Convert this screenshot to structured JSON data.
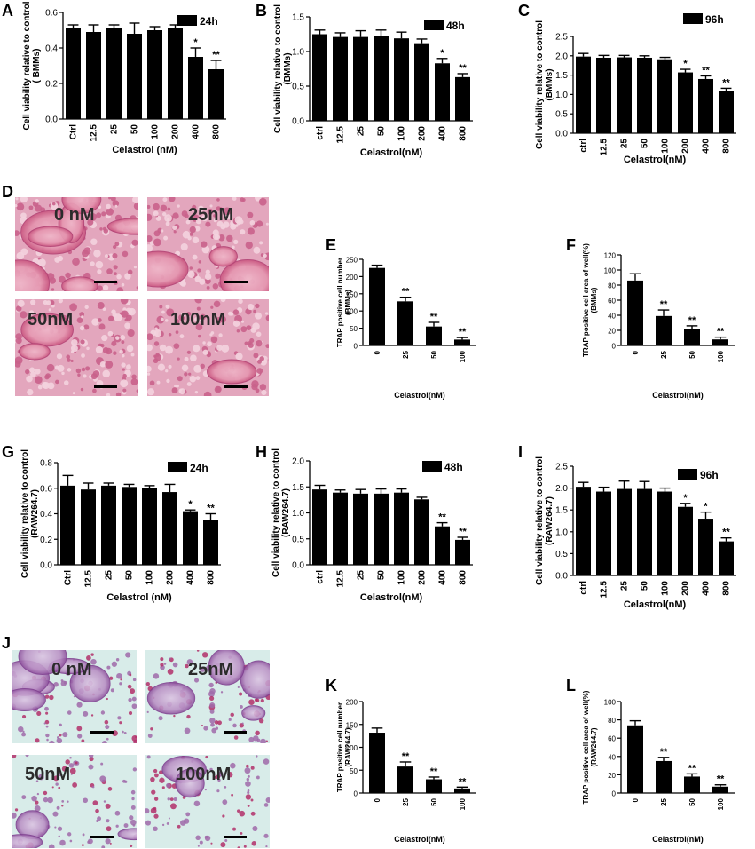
{
  "figure": {
    "colors": {
      "bar": "#000000",
      "axis": "#000000",
      "stain_pink": "#e3a6bd",
      "stain_dark": "#c05587",
      "raw_bg": "#d8ece9",
      "raw_purple": "#b07ab8",
      "raw_magenta": "#b3306a"
    },
    "panels": [
      {
        "letter": "A"
      },
      {
        "letter": "B"
      },
      {
        "letter": "C"
      },
      {
        "letter": "D"
      },
      {
        "letter": "E"
      },
      {
        "letter": "F"
      },
      {
        "letter": "G"
      },
      {
        "letter": "H"
      },
      {
        "letter": "I"
      },
      {
        "letter": "J"
      },
      {
        "letter": "K"
      },
      {
        "letter": "L"
      }
    ],
    "micro_bmm": {
      "labels": [
        "0 nM",
        "25nM",
        "50nM",
        "100nM"
      ]
    },
    "micro_raw": {
      "labels": [
        "0 nM",
        "25nM",
        "50nM",
        "100nM"
      ]
    }
  },
  "chart_data": [
    {
      "panel": "A",
      "type": "bar",
      "categories": [
        "Ctrl",
        "12.5",
        "25",
        "50",
        "100",
        "200",
        "400",
        "800"
      ],
      "values": [
        0.51,
        0.49,
        0.51,
        0.48,
        0.5,
        0.51,
        0.35,
        0.28
      ],
      "errors": [
        0.02,
        0.04,
        0.02,
        0.06,
        0.02,
        0.02,
        0.05,
        0.05
      ],
      "sig": [
        "",
        "",
        "",
        "",
        "",
        "",
        "*",
        "**"
      ],
      "ylim": [
        0,
        0.6
      ],
      "yticks": [
        "0.0",
        "0.2",
        "0.4",
        "0.6"
      ],
      "ylabel": [
        "Cell viability relative to control",
        "( BMMs)"
      ],
      "xlabel": "Celastrol (nM)",
      "legend": "24h"
    },
    {
      "panel": "B",
      "type": "bar",
      "categories": [
        "ctrl",
        "12.5",
        "25",
        "50",
        "100",
        "200",
        "400",
        "800"
      ],
      "values": [
        1.25,
        1.21,
        1.21,
        1.23,
        1.19,
        1.12,
        0.83,
        0.63
      ],
      "errors": [
        0.06,
        0.06,
        0.09,
        0.08,
        0.09,
        0.06,
        0.07,
        0.05
      ],
      "sig": [
        "",
        "",
        "",
        "",
        "",
        "",
        "*",
        "**"
      ],
      "ylim": [
        0,
        1.5
      ],
      "yticks": [
        "0.0",
        "0.5",
        "1.0",
        "1.5"
      ],
      "ylabel": [
        "Cell viability relative to control",
        "(BMMs)"
      ],
      "xlabel": "Celastrol(nM)",
      "legend": "48h"
    },
    {
      "panel": "C",
      "type": "bar",
      "categories": [
        "ctrl",
        "12.5",
        "25",
        "50",
        "100",
        "200",
        "400",
        "800"
      ],
      "values": [
        1.98,
        1.95,
        1.96,
        1.95,
        1.91,
        1.57,
        1.4,
        1.08
      ],
      "errors": [
        0.08,
        0.06,
        0.05,
        0.05,
        0.05,
        0.08,
        0.08,
        0.08
      ],
      "sig": [
        "",
        "",
        "",
        "",
        "",
        "*",
        "**",
        "**"
      ],
      "ylim": [
        0,
        2.5
      ],
      "yticks": [
        "0.0",
        "0.5",
        "1.0",
        "1.5",
        "2.0",
        "2.5"
      ],
      "ylabel": [
        "Cell viability relative to control",
        "(BMMs)"
      ],
      "xlabel": "Celastrol(nM)",
      "legend": "96h"
    },
    {
      "panel": "E",
      "type": "bar",
      "categories": [
        "0",
        "25",
        "50",
        "100"
      ],
      "values": [
        225,
        128,
        55,
        17
      ],
      "errors": [
        8,
        12,
        12,
        6
      ],
      "sig": [
        "",
        "**",
        "**",
        "**"
      ],
      "ylim": [
        0,
        250
      ],
      "yticks": [
        "0",
        "50",
        "100",
        "150",
        "200",
        "250"
      ],
      "ylabel": [
        "TRAP positive cell number",
        "(BMMs)"
      ],
      "xlabel": "Celastrol(nM)",
      "legend": ""
    },
    {
      "panel": "F",
      "type": "bar",
      "categories": [
        "0",
        "25",
        "50",
        "100"
      ],
      "values": [
        86,
        39,
        22,
        8
      ],
      "errors": [
        9,
        8,
        4,
        3
      ],
      "sig": [
        "",
        "**",
        "**",
        "**"
      ],
      "ylim": [
        0,
        120
      ],
      "yticks": [
        "0",
        "20",
        "40",
        "60",
        "80",
        "100",
        "120"
      ],
      "ylabel": [
        "TRAP positive cell area of well(%)",
        "(BMMs)"
      ],
      "xlabel": "Celastrol(nM)",
      "legend": ""
    },
    {
      "panel": "G",
      "type": "bar",
      "categories": [
        "Ctrl",
        "12.5",
        "25",
        "50",
        "100",
        "200",
        "400",
        "800"
      ],
      "values": [
        0.62,
        0.59,
        0.62,
        0.61,
        0.6,
        0.57,
        0.42,
        0.35
      ],
      "errors": [
        0.08,
        0.05,
        0.02,
        0.02,
        0.02,
        0.06,
        0.01,
        0.05
      ],
      "sig": [
        "",
        "",
        "",
        "",
        "",
        "",
        "*",
        "**"
      ],
      "ylim": [
        0,
        0.8
      ],
      "yticks": [
        "0.0",
        "0.2",
        "0.4",
        "0.6",
        "0.8"
      ],
      "ylabel": [
        "Cell viability relative to control",
        "(RAW264.7)"
      ],
      "xlabel": "Celastrol (nM)",
      "legend": "24h"
    },
    {
      "panel": "H",
      "type": "bar",
      "categories": [
        "ctrl",
        "12.5",
        "25",
        "50",
        "100",
        "200",
        "400",
        "800"
      ],
      "values": [
        1.45,
        1.39,
        1.37,
        1.37,
        1.39,
        1.26,
        0.74,
        0.48
      ],
      "errors": [
        0.08,
        0.05,
        0.08,
        0.09,
        0.07,
        0.04,
        0.07,
        0.05
      ],
      "sig": [
        "",
        "",
        "",
        "",
        "",
        "",
        "**",
        "**"
      ],
      "ylim": [
        0,
        2.0
      ],
      "yticks": [
        "0.0",
        "0.5",
        "1.0",
        "1.5",
        "2.0"
      ],
      "ylabel": [
        "Cell viability relative to control",
        "(RAW264.7)"
      ],
      "xlabel": "Celastrol(nM)",
      "legend": "48h"
    },
    {
      "panel": "I",
      "type": "bar",
      "categories": [
        "ctrl",
        "12.5",
        "25",
        "50",
        "100",
        "200",
        "400",
        "800"
      ],
      "values": [
        2.03,
        1.92,
        1.98,
        1.98,
        1.92,
        1.57,
        1.3,
        0.78
      ],
      "errors": [
        0.1,
        0.1,
        0.18,
        0.17,
        0.08,
        0.08,
        0.15,
        0.08
      ],
      "sig": [
        "",
        "",
        "",
        "",
        "",
        "*",
        "*",
        "**"
      ],
      "ylim": [
        0,
        2.5
      ],
      "yticks": [
        "0.0",
        "0.5",
        "1.0",
        "1.5",
        "2.0",
        "2.5"
      ],
      "ylabel": [
        "Cell viability relative to control",
        "(RAW264.7)"
      ],
      "xlabel": "Celastrol(nM)",
      "legend": "96h"
    },
    {
      "panel": "K",
      "type": "bar",
      "categories": [
        "0",
        "25",
        "50",
        "100"
      ],
      "values": [
        132,
        58,
        30,
        10
      ],
      "errors": [
        10,
        10,
        5,
        3
      ],
      "sig": [
        "",
        "**",
        "**",
        "**"
      ],
      "ylim": [
        0,
        200
      ],
      "yticks": [
        "0",
        "50",
        "100",
        "150",
        "200"
      ],
      "ylabel": [
        "TRAP positive cell number",
        "(RAW264.7)"
      ],
      "xlabel": "Celastrol(nM)",
      "legend": ""
    },
    {
      "panel": "L",
      "type": "bar",
      "categories": [
        "0",
        "25",
        "50",
        "100"
      ],
      "values": [
        74,
        35,
        18,
        7
      ],
      "errors": [
        5,
        4,
        3,
        2
      ],
      "sig": [
        "",
        "**",
        "**",
        "**"
      ],
      "ylim": [
        0,
        100
      ],
      "yticks": [
        "0",
        "20",
        "40",
        "60",
        "80",
        "100"
      ],
      "ylabel": [
        "TRAP positive cell area of well(%)",
        "(RAW264.7)"
      ],
      "xlabel": "Celastrol(nM)",
      "legend": ""
    }
  ]
}
